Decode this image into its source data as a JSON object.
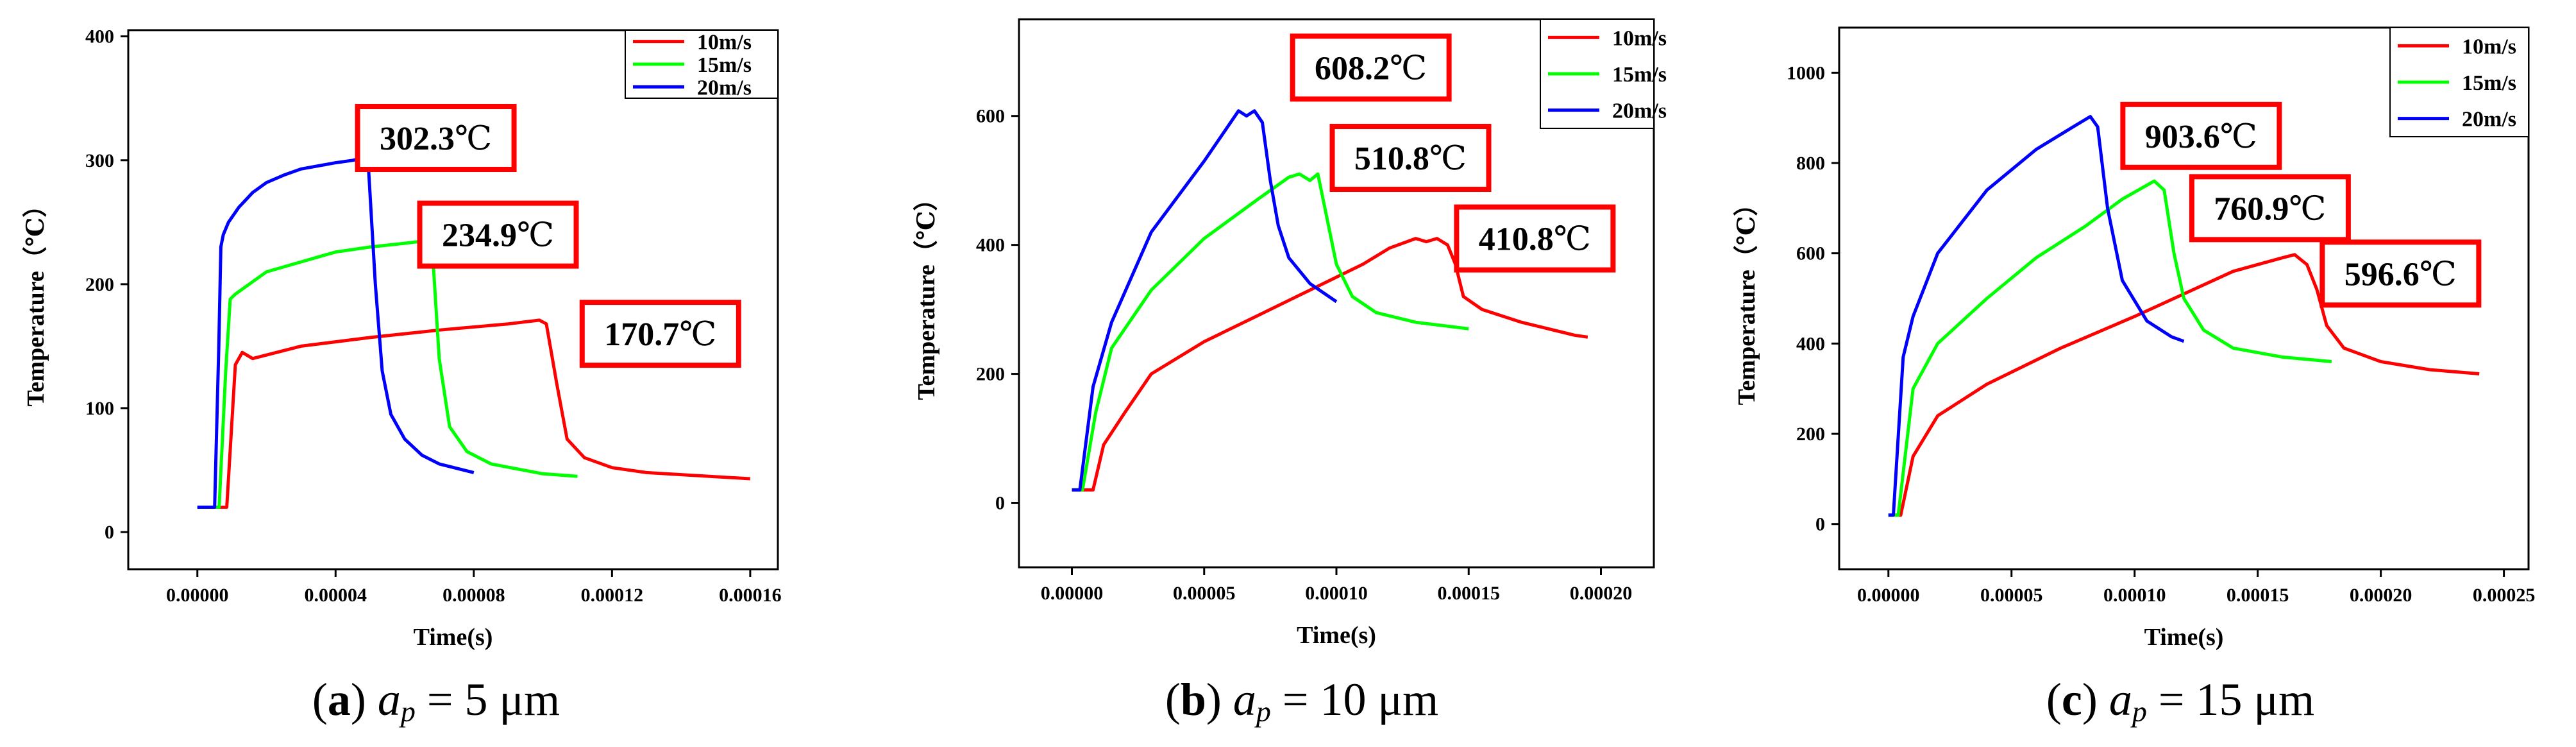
{
  "chart_data": [
    {
      "type": "line",
      "panel": "a",
      "xlabel": "Time(s)",
      "ylabel": "Temperature（℃）",
      "xlim": [
        -2e-05,
        0.000168
      ],
      "ylim": [
        -30,
        405
      ],
      "xticks": [
        0,
        4e-05,
        8e-05,
        0.00012,
        0.00016
      ],
      "xtick_labels": [
        "0.00000",
        "0.00004",
        "0.00008",
        "0.00012",
        "0.00016"
      ],
      "yticks": [
        0,
        100,
        200,
        300,
        400
      ],
      "ytick_labels": [
        "0",
        "100",
        "200",
        "300",
        "400"
      ],
      "legend": [
        "10m/s",
        "15m/s",
        "20m/s"
      ],
      "legend_position": "top-right",
      "series": [
        {
          "name": "10m/s",
          "color": "#ff0000",
          "points": [
            [
              0,
              20
            ],
            [
              8.5e-06,
              20
            ],
            [
              1.1e-05,
              135
            ],
            [
              1.3e-05,
              145
            ],
            [
              1.6e-05,
              140
            ],
            [
              3e-05,
              150
            ],
            [
              5e-05,
              157
            ],
            [
              7e-05,
              163
            ],
            [
              9e-05,
              168
            ],
            [
              9.9e-05,
              171
            ],
            [
              0.000101,
              168
            ],
            [
              0.000104,
              120
            ],
            [
              0.000107,
              75
            ],
            [
              0.000112,
              60
            ],
            [
              0.00012,
              52
            ],
            [
              0.00013,
              48
            ],
            [
              0.00016,
              43
            ]
          ]
        },
        {
          "name": "15m/s",
          "color": "#00ff00",
          "points": [
            [
              0,
              20
            ],
            [
              6.3e-06,
              20
            ],
            [
              8.2e-06,
              130
            ],
            [
              9.5e-06,
              188
            ],
            [
              1.1e-05,
              192
            ],
            [
              2e-05,
              210
            ],
            [
              3e-05,
              218
            ],
            [
              4e-05,
              226
            ],
            [
              5e-05,
              230
            ],
            [
              6e-05,
              233
            ],
            [
              6.6e-05,
              235
            ],
            [
              6.8e-05,
              228
            ],
            [
              7e-05,
              140
            ],
            [
              7.3e-05,
              85
            ],
            [
              7.8e-05,
              65
            ],
            [
              8.5e-05,
              55
            ],
            [
              0.0001,
              47
            ],
            [
              0.00011,
              45
            ]
          ]
        },
        {
          "name": "20m/s",
          "color": "#0000ff",
          "points": [
            [
              0,
              20
            ],
            [
              5e-06,
              20
            ],
            [
              6.2e-06,
              150
            ],
            [
              6.8e-06,
              230
            ],
            [
              7.5e-06,
              240
            ],
            [
              9e-06,
              250
            ],
            [
              1.2e-05,
              262
            ],
            [
              1.6e-05,
              274
            ],
            [
              2e-05,
              282
            ],
            [
              2.5e-05,
              288
            ],
            [
              3e-05,
              293
            ],
            [
              4e-05,
              298
            ],
            [
              4.5e-05,
              300
            ],
            [
              4.8e-05,
              302
            ],
            [
              4.95e-05,
              295
            ],
            [
              5.15e-05,
              200
            ],
            [
              5.35e-05,
              130
            ],
            [
              5.6e-05,
              95
            ],
            [
              6e-05,
              75
            ],
            [
              6.5e-05,
              62
            ],
            [
              7e-05,
              55
            ],
            [
              8e-05,
              48
            ]
          ]
        }
      ],
      "annotations": [
        {
          "text": "302.3",
          "unit": "℃",
          "x": 6.9e-05,
          "y": 318
        },
        {
          "text": "234.9",
          "unit": "℃",
          "x": 8.7e-05,
          "y": 240
        },
        {
          "text": "170.7",
          "unit": "℃",
          "x": 0.000134,
          "y": 160
        }
      ],
      "caption": {
        "letter": "a",
        "var": "a",
        "sub": "p",
        "value": "= 5 μm"
      }
    },
    {
      "type": "line",
      "panel": "b",
      "xlabel": "Time(s)",
      "ylabel": "Temperature（℃）",
      "xlim": [
        -2e-05,
        0.00022
      ],
      "ylim": [
        -100,
        750
      ],
      "xticks": [
        0,
        5e-05,
        0.0001,
        0.00015,
        0.0002
      ],
      "xtick_labels": [
        "0.00000",
        "0.00005",
        "0.00010",
        "0.00015",
        "0.00020"
      ],
      "yticks": [
        0,
        200,
        400,
        600
      ],
      "ytick_labels": [
        "0",
        "200",
        "400",
        "600"
      ],
      "legend": [
        "10m/s",
        "15m/s",
        "20m/s"
      ],
      "legend_position": "top-right",
      "series": [
        {
          "name": "10m/s",
          "color": "#ff0000",
          "points": [
            [
              0,
              20
            ],
            [
              8e-06,
              20
            ],
            [
              1.2e-05,
              90
            ],
            [
              2e-05,
              140
            ],
            [
              3e-05,
              200
            ],
            [
              5e-05,
              250
            ],
            [
              7e-05,
              290
            ],
            [
              9e-05,
              330
            ],
            [
              0.00011,
              370
            ],
            [
              0.00012,
              395
            ],
            [
              0.00013,
              410
            ],
            [
              0.000134,
              405
            ],
            [
              0.000138,
              410
            ],
            [
              0.000142,
              400
            ],
            [
              0.000145,
              370
            ],
            [
              0.000148,
              320
            ],
            [
              0.000155,
              300
            ],
            [
              0.00017,
              280
            ],
            [
              0.00019,
              260
            ],
            [
              0.000195,
              257
            ]
          ]
        },
        {
          "name": "15m/s",
          "color": "#00ff00",
          "points": [
            [
              0,
              20
            ],
            [
              4e-06,
              20
            ],
            [
              9e-06,
              140
            ],
            [
              1.5e-05,
              240
            ],
            [
              3e-05,
              330
            ],
            [
              5e-05,
              410
            ],
            [
              7e-05,
              470
            ],
            [
              8.2e-05,
              505
            ],
            [
              8.6e-05,
              510
            ],
            [
              9e-05,
              500
            ],
            [
              9.3e-05,
              510
            ],
            [
              9.6e-05,
              450
            ],
            [
              0.0001,
              370
            ],
            [
              0.000106,
              320
            ],
            [
              0.000115,
              295
            ],
            [
              0.00013,
              280
            ],
            [
              0.00015,
              270
            ]
          ]
        },
        {
          "name": "20m/s",
          "color": "#0000ff",
          "points": [
            [
              0,
              20
            ],
            [
              3e-06,
              20
            ],
            [
              8e-06,
              180
            ],
            [
              1.5e-05,
              280
            ],
            [
              3e-05,
              420
            ],
            [
              5e-05,
              530
            ],
            [
              6.3e-05,
              608
            ],
            [
              6.6e-05,
              600
            ],
            [
              6.9e-05,
              608
            ],
            [
              7.2e-05,
              590
            ],
            [
              7.5e-05,
              500
            ],
            [
              7.8e-05,
              430
            ],
            [
              8.2e-05,
              380
            ],
            [
              9e-05,
              340
            ],
            [
              0.0001,
              312
            ]
          ]
        }
      ],
      "annotations": [
        {
          "text": "608.2",
          "unit": "℃",
          "x": 0.000113,
          "y": 675
        },
        {
          "text": "510.8",
          "unit": "℃",
          "x": 0.000128,
          "y": 535
        },
        {
          "text": "410.8",
          "unit": "℃",
          "x": 0.000175,
          "y": 410
        }
      ],
      "caption": {
        "letter": "b",
        "var": "a",
        "sub": "p",
        "value": "= 10 μm"
      }
    },
    {
      "type": "line",
      "panel": "c",
      "xlabel": "Time(s)",
      "ylabel": "Temperature（℃）",
      "xlim": [
        -2e-05,
        0.00026
      ],
      "ylim": [
        -100,
        1100
      ],
      "xticks": [
        0,
        5e-05,
        0.0001,
        0.00015,
        0.0002,
        0.00025
      ],
      "xtick_labels": [
        "0.00000",
        "0.00005",
        "0.00010",
        "0.00015",
        "0.00020",
        "0.00025"
      ],
      "yticks": [
        0,
        200,
        400,
        600,
        800,
        1000
      ],
      "ytick_labels": [
        "0",
        "200",
        "400",
        "600",
        "800",
        "1000"
      ],
      "legend": [
        "10m/s",
        "15m/s",
        "20m/s"
      ],
      "legend_position": "top-right",
      "series": [
        {
          "name": "10m/s",
          "color": "#ff0000",
          "points": [
            [
              0,
              20
            ],
            [
              5e-06,
              20
            ],
            [
              1e-05,
              150
            ],
            [
              2e-05,
              240
            ],
            [
              4e-05,
              310
            ],
            [
              7e-05,
              390
            ],
            [
              0.0001,
              460
            ],
            [
              0.00012,
              510
            ],
            [
              0.00014,
              560
            ],
            [
              0.00016,
              590
            ],
            [
              0.000165,
              597
            ],
            [
              0.00017,
              575
            ],
            [
              0.000174,
              520
            ],
            [
              0.000178,
              440
            ],
            [
              0.000185,
              390
            ],
            [
              0.0002,
              360
            ],
            [
              0.00022,
              342
            ],
            [
              0.00024,
              333
            ]
          ]
        },
        {
          "name": "15m/s",
          "color": "#00ff00",
          "points": [
            [
              0,
              20
            ],
            [
              4e-06,
              20
            ],
            [
              1e-05,
              300
            ],
            [
              2e-05,
              400
            ],
            [
              4e-05,
              500
            ],
            [
              6e-05,
              590
            ],
            [
              8e-05,
              660
            ],
            [
              9.5e-05,
              720
            ],
            [
              0.000108,
              760
            ],
            [
              0.000112,
              740
            ],
            [
              0.000116,
              600
            ],
            [
              0.00012,
              500
            ],
            [
              0.000128,
              430
            ],
            [
              0.00014,
              390
            ],
            [
              0.00016,
              370
            ],
            [
              0.00018,
              360
            ]
          ]
        },
        {
          "name": "20m/s",
          "color": "#0000ff",
          "points": [
            [
              0,
              20
            ],
            [
              2e-06,
              20
            ],
            [
              6e-06,
              370
            ],
            [
              1e-05,
              460
            ],
            [
              2e-05,
              600
            ],
            [
              4e-05,
              740
            ],
            [
              6e-05,
              830
            ],
            [
              7.5e-05,
              880
            ],
            [
              8.2e-05,
              903
            ],
            [
              8.5e-05,
              880
            ],
            [
              8.9e-05,
              700
            ],
            [
              9.5e-05,
              540
            ],
            [
              0.000105,
              450
            ],
            [
              0.000115,
              415
            ],
            [
              0.00012,
              405
            ]
          ]
        }
      ],
      "annotations": [
        {
          "text": "903.6",
          "unit": "℃",
          "x": 0.000127,
          "y": 860
        },
        {
          "text": "760.9",
          "unit": "℃",
          "x": 0.000155,
          "y": 700
        },
        {
          "text": "596.6",
          "unit": "℃",
          "x": 0.000208,
          "y": 555
        }
      ],
      "caption": {
        "letter": "c",
        "var": "a",
        "sub": "p",
        "value": "= 15 μm"
      }
    }
  ]
}
